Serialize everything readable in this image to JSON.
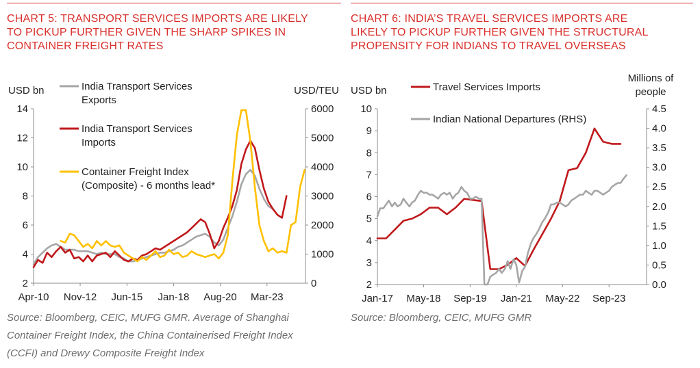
{
  "chart_data": [
    {
      "type": "line",
      "title_lines": [
        "CHART 5: TRANSPORT SERVICES IMPORTS ARE LIKELY",
        "TO PICKUP FURTHER GIVEN THE SHARP SPIKES IN",
        "CONTAINER FREIGHT RATES"
      ],
      "ylabel_left": "USD bn",
      "ylabel_right": "USD/TEU",
      "ylim_left": [
        2,
        14
      ],
      "yticks_left": [
        "14",
        "12",
        "10",
        "8",
        "6",
        "4",
        "2"
      ],
      "ylim_right": [
        0,
        6000
      ],
      "yticks_right": [
        "6000",
        "5000",
        "4000",
        "3000",
        "2000",
        "1000",
        "0"
      ],
      "xlim": [
        2010.25,
        2025.3
      ],
      "xticks": [
        {
          "label": "Apr-10",
          "x": 2010.25
        },
        {
          "label": "Nov-12",
          "x": 2012.83
        },
        {
          "label": "Jun-15",
          "x": 2015.42
        },
        {
          "label": "Jan-18",
          "x": 2018.0
        },
        {
          "label": "Aug-20",
          "x": 2020.58
        },
        {
          "label": "Mar-23",
          "x": 2023.17
        }
      ],
      "legend_placement": "top-left",
      "series": [
        {
          "name_lines": [
            "India Transport Services",
            "Exports"
          ],
          "color": "#a6a6a6",
          "axis": "left",
          "x": [
            2010.25,
            2010.5,
            2010.75,
            2011,
            2011.25,
            2011.5,
            2011.75,
            2012,
            2012.25,
            2012.5,
            2012.75,
            2013,
            2013.25,
            2013.5,
            2013.75,
            2014,
            2014.25,
            2014.5,
            2014.75,
            2015,
            2015.25,
            2015.5,
            2015.75,
            2016,
            2016.25,
            2016.5,
            2016.75,
            2017,
            2017.25,
            2017.5,
            2017.75,
            2018,
            2018.25,
            2018.5,
            2018.75,
            2019,
            2019.25,
            2019.5,
            2019.75,
            2020,
            2020.25,
            2020.5,
            2020.75,
            2021,
            2021.25,
            2021.5,
            2021.75,
            2022,
            2022.25,
            2022.5,
            2022.75,
            2023,
            2023.25,
            2023.5
          ],
          "y": [
            3.3,
            3.8,
            4.1,
            4.4,
            4.6,
            4.7,
            4.5,
            4.3,
            4.3,
            4.3,
            4.2,
            4.2,
            4.2,
            4.1,
            4.0,
            4.1,
            4.0,
            4.0,
            4.0,
            3.8,
            3.7,
            3.5,
            3.5,
            3.6,
            3.7,
            3.8,
            3.9,
            4.0,
            4.1,
            4.1,
            4.2,
            4.3,
            4.5,
            4.6,
            4.8,
            5.0,
            5.2,
            5.3,
            5.4,
            5.2,
            4.8,
            4.6,
            5.0,
            5.8,
            6.6,
            7.6,
            8.8,
            9.5,
            9.8,
            9.4,
            8.5,
            7.8,
            7.3,
            7.1
          ]
        },
        {
          "name_lines": [
            "India Transport Services",
            "Imports"
          ],
          "color": "#c0191c",
          "axis": "left",
          "x": [
            2010.25,
            2010.5,
            2010.75,
            2011,
            2011.25,
            2011.5,
            2011.75,
            2012,
            2012.25,
            2012.5,
            2012.75,
            2013,
            2013.25,
            2013.5,
            2013.75,
            2014,
            2014.25,
            2014.5,
            2014.75,
            2015,
            2015.25,
            2015.5,
            2015.75,
            2016,
            2016.25,
            2016.5,
            2016.75,
            2017,
            2017.25,
            2017.5,
            2017.75,
            2018,
            2018.25,
            2018.5,
            2018.75,
            2019,
            2019.25,
            2019.5,
            2019.75,
            2020,
            2020.25,
            2020.5,
            2020.75,
            2021,
            2021.25,
            2021.5,
            2021.75,
            2022,
            2022.25,
            2022.5,
            2022.75,
            2023,
            2023.25,
            2023.5,
            2023.75,
            2024,
            2024.25
          ],
          "y": [
            3.1,
            3.6,
            3.4,
            4.1,
            3.8,
            4.2,
            4.5,
            4.1,
            4.3,
            3.7,
            3.8,
            3.5,
            3.9,
            3.5,
            3.9,
            4.0,
            4.1,
            3.8,
            4.2,
            3.9,
            3.6,
            3.5,
            3.7,
            3.6,
            3.9,
            4.0,
            4.2,
            4.4,
            4.3,
            4.5,
            4.7,
            4.9,
            5.1,
            5.3,
            5.5,
            5.8,
            6.1,
            6.4,
            6.2,
            5.4,
            4.4,
            4.9,
            5.8,
            6.5,
            7.3,
            8.4,
            10.2,
            11.2,
            11.8,
            11.3,
            9.8,
            8.5,
            7.6,
            7.1,
            6.7,
            6.5,
            8.0
          ]
        },
        {
          "name_lines": [
            "Container Freight Index",
            "(Composite) - 6 months lead*"
          ],
          "color": "#ffc000",
          "axis": "right",
          "x": [
            2011.75,
            2012,
            2012.25,
            2012.5,
            2012.75,
            2013,
            2013.25,
            2013.5,
            2013.75,
            2014,
            2014.25,
            2014.5,
            2014.75,
            2015,
            2015.25,
            2015.5,
            2015.75,
            2016,
            2016.25,
            2016.5,
            2016.75,
            2017,
            2017.25,
            2017.5,
            2017.75,
            2018,
            2018.25,
            2018.5,
            2018.75,
            2019,
            2019.25,
            2019.5,
            2019.75,
            2020,
            2020.25,
            2020.5,
            2020.75,
            2021,
            2021.25,
            2021.5,
            2021.75,
            2022,
            2022.25,
            2022.5,
            2022.75,
            2023,
            2023.25,
            2023.5,
            2023.75,
            2024,
            2024.25,
            2024.5,
            2024.75,
            2025,
            2025.25
          ],
          "y": [
            1450,
            1400,
            1700,
            1650,
            1450,
            1250,
            1350,
            1200,
            1450,
            1300,
            1450,
            1300,
            1250,
            1300,
            1050,
            950,
            850,
            750,
            900,
            800,
            950,
            1100,
            900,
            950,
            1150,
            1000,
            1050,
            900,
            950,
            1100,
            1000,
            950,
            900,
            950,
            1000,
            850,
            1050,
            1650,
            3500,
            5100,
            5950,
            5950,
            4900,
            3300,
            2000,
            1450,
            1100,
            1200,
            1050,
            1100,
            1050,
            2000,
            2100,
            3300,
            3900
          ]
        }
      ],
      "source_lines": [
        "Source: Bloomberg, CEIC, MUFG GMR.  Average of Shanghai",
        "Container Freight Index, the China Containerised Freight Index",
        "(CCFI) and Drewy Composite Freight Index"
      ]
    },
    {
      "type": "line",
      "title_lines": [
        "CHART 6: INDIA’S TRAVEL SERVICES IMPORTS ARE",
        "LIKELY TO PICKUP FURTHER GIVEN THE STRUCTURAL",
        "PROPENSITY FOR INDIANS TO TRAVEL OVERSEAS"
      ],
      "ylabel_left": "USD bn",
      "ylabel_right_lines": [
        "Millions of",
        "people"
      ],
      "ylim_left": [
        2,
        10
      ],
      "yticks_left": [
        "10",
        "9",
        "8",
        "7",
        "6",
        "5",
        "4",
        "3",
        "2"
      ],
      "ylim_right": [
        0,
        4.5
      ],
      "yticks_right": [
        "4.5",
        "4.0",
        "3.5",
        "3.0",
        "2.5",
        "2.0",
        "1.5",
        "1.0",
        "0.5",
        "0.0"
      ],
      "xlim": [
        2017.0,
        2024.75
      ],
      "xticks": [
        {
          "label": "Jan-17",
          "x": 2017.0
        },
        {
          "label": "May-18",
          "x": 2018.33
        },
        {
          "label": "Sep-19",
          "x": 2019.67
        },
        {
          "label": "Jan-21",
          "x": 2021.0
        },
        {
          "label": "May-22",
          "x": 2022.33
        },
        {
          "label": "Sep-23",
          "x": 2023.67
        }
      ],
      "legend_placement": "top-left",
      "series": [
        {
          "name": "Travel Services Imports",
          "color": "#c0191c",
          "axis": "left",
          "x": [
            2017.0,
            2017.25,
            2017.5,
            2017.75,
            2018.0,
            2018.25,
            2018.5,
            2018.75,
            2019.0,
            2019.25,
            2019.5,
            2019.75,
            2020.0,
            2020.25,
            2020.5,
            2020.75,
            2021.0,
            2021.25,
            2021.5,
            2021.75,
            2022.0,
            2022.25,
            2022.5,
            2022.75,
            2023.0,
            2023.25,
            2023.5,
            2023.75,
            2024.0
          ],
          "y": [
            4.1,
            4.1,
            4.5,
            4.9,
            5.0,
            5.2,
            5.5,
            5.5,
            5.2,
            5.5,
            5.9,
            5.85,
            5.8,
            2.7,
            2.7,
            2.9,
            3.2,
            2.85,
            3.6,
            4.3,
            5.0,
            5.8,
            7.2,
            7.3,
            8.0,
            9.1,
            8.5,
            8.4,
            8.4
          ]
        },
        {
          "name": "Indian National Departures (RHS)",
          "color": "#a6a6a6",
          "axis": "right",
          "x": [
            2017.0,
            2017.08,
            2017.17,
            2017.25,
            2017.33,
            2017.42,
            2017.5,
            2017.58,
            2017.67,
            2017.75,
            2017.83,
            2017.92,
            2018.0,
            2018.08,
            2018.17,
            2018.25,
            2018.33,
            2018.42,
            2018.5,
            2018.58,
            2018.67,
            2018.75,
            2018.83,
            2018.92,
            2019.0,
            2019.08,
            2019.17,
            2019.25,
            2019.33,
            2019.42,
            2019.5,
            2019.58,
            2019.67,
            2019.75,
            2019.83,
            2019.92,
            2020.0,
            2020.08,
            2020.17,
            2020.25,
            2020.33,
            2020.42,
            2020.5,
            2020.58,
            2020.67,
            2020.75,
            2020.83,
            2020.92,
            2021.0,
            2021.08,
            2021.17,
            2021.25,
            2021.33,
            2021.42,
            2021.5,
            2021.58,
            2021.67,
            2021.75,
            2021.83,
            2021.92,
            2022.0,
            2022.08,
            2022.17,
            2022.25,
            2022.33,
            2022.42,
            2022.5,
            2022.58,
            2022.67,
            2022.75,
            2022.83,
            2022.92,
            2023.0,
            2023.08,
            2023.17,
            2023.25,
            2023.33,
            2023.42,
            2023.5,
            2023.58,
            2023.67,
            2023.75,
            2023.83,
            2023.92,
            2024.0,
            2024.08,
            2024.17
          ],
          "y": [
            1.75,
            1.95,
            1.95,
            2.05,
            2.15,
            2.0,
            2.1,
            2.0,
            2.05,
            2.2,
            2.1,
            2.0,
            2.1,
            2.15,
            2.3,
            2.4,
            2.35,
            2.35,
            2.3,
            2.3,
            2.25,
            2.2,
            2.3,
            2.35,
            2.3,
            2.35,
            2.2,
            2.3,
            2.35,
            2.5,
            2.4,
            2.35,
            2.2,
            2.2,
            2.25,
            2.2,
            2.2,
            0.0,
            0.0,
            0.2,
            0.25,
            0.3,
            0.4,
            0.3,
            0.4,
            0.6,
            0.4,
            0.65,
            0.5,
            0.05,
            0.35,
            0.45,
            0.8,
            1.05,
            1.2,
            1.3,
            1.45,
            1.6,
            1.7,
            1.85,
            2.05,
            2.05,
            2.1,
            2.1,
            2.05,
            2.0,
            2.05,
            2.15,
            2.2,
            2.25,
            2.3,
            2.3,
            2.4,
            2.35,
            2.3,
            2.4,
            2.4,
            2.35,
            2.3,
            2.35,
            2.4,
            2.5,
            2.55,
            2.6,
            2.6,
            2.7,
            2.8
          ]
        }
      ],
      "source_lines": [
        "Source: Bloomberg, CEIC, MUFG GMR"
      ]
    }
  ]
}
